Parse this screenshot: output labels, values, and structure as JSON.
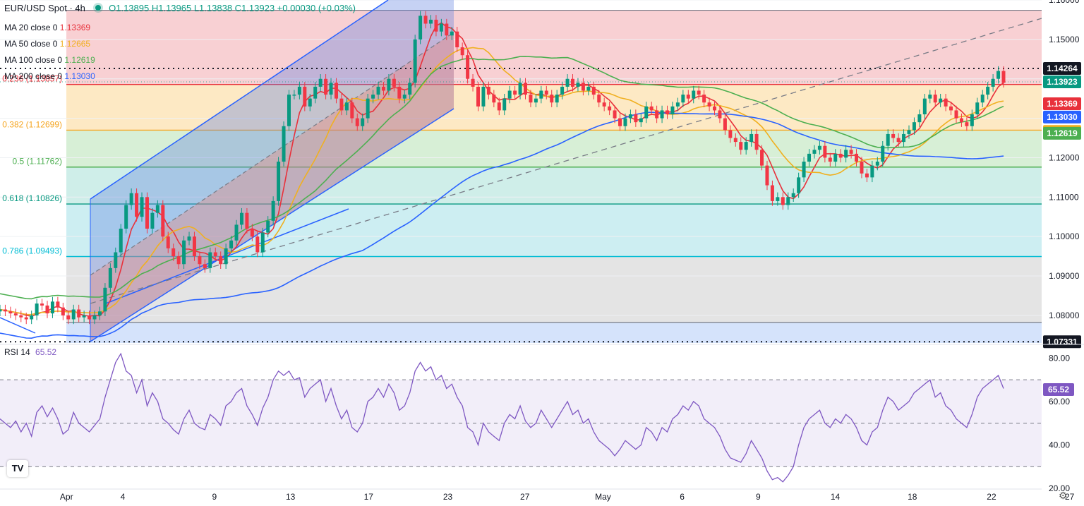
{
  "header": {
    "symbol": "EUR/USD Spot · 4h",
    "ohlc": "O1.13895 H1.13965 L1.13838 C1.13923 +0.00030 (+0.03%)"
  },
  "legend": [
    {
      "label": "MA 20 close 0",
      "value": "1.13369",
      "color": "#e8313b"
    },
    {
      "label": "MA 50 close 0",
      "value": "1.12665",
      "color": "#f0b020"
    },
    {
      "label": "MA 100 close 0",
      "value": "1.12619",
      "color": "#4caf50"
    },
    {
      "label": "MA 200 close 0",
      "value": "1.13030",
      "color": "#2962ff"
    }
  ],
  "rsi_header": {
    "label": "RSI 14",
    "value": "65.52"
  },
  "chart_data": {
    "type": "candlestick",
    "price_axis": {
      "min": 1.073,
      "max": 1.16,
      "ticks": [
        "1.16000",
        "1.15000",
        "1.14000",
        "1.13000",
        "1.12000",
        "1.11000",
        "1.10000",
        "1.09000",
        "1.08000"
      ]
    },
    "time_axis": {
      "labels": [
        "Apr",
        "4",
        "9",
        "13",
        "17",
        "23",
        "27",
        "May",
        "6",
        "9",
        "14",
        "18",
        "22",
        "27"
      ],
      "positions": [
        0.03,
        0.084,
        0.172,
        0.245,
        0.32,
        0.396,
        0.47,
        0.545,
        0.621,
        0.694,
        0.768,
        0.842,
        0.918,
        0.993
      ]
    },
    "price_labels": [
      {
        "text": "1.14264",
        "value": 1.14264,
        "bg": "#131722",
        "fg": "#ffffff"
      },
      {
        "text": "1.13923",
        "value": 1.13923,
        "bg": "#089981",
        "fg": "#ffffff"
      },
      {
        "text": "1.13369",
        "value": 1.13369,
        "bg": "#e8313b",
        "fg": "#ffffff"
      },
      {
        "text": "1.13030",
        "value": 1.1303,
        "bg": "#2962ff",
        "fg": "#ffffff"
      },
      {
        "text": "1.12665",
        "value": 1.12665,
        "bg": "#f0b020",
        "fg": "#ffffff"
      },
      {
        "text": "1.12619",
        "value": 1.12619,
        "bg": "#4caf50",
        "fg": "#ffffff"
      },
      {
        "text": "1.07331",
        "value": 1.07331,
        "bg": "#131722",
        "fg": "#ffffff"
      }
    ],
    "fib_levels": [
      {
        "ratio": "0.236",
        "label": "0.236 (1.13857)",
        "value": 1.13857,
        "color": "#e8313b"
      },
      {
        "ratio": "0.382",
        "label": "0.382 (1.12699)",
        "value": 1.12699,
        "color": "#f5a623"
      },
      {
        "ratio": "0.5",
        "label": "0.5 (1.11762)",
        "value": 1.11762,
        "color": "#4caf50"
      },
      {
        "ratio": "0.618",
        "label": "0.618 (1.10826)",
        "value": 1.10826,
        "color": "#089981"
      },
      {
        "ratio": "0.786",
        "label": "0.786 (1.09493)",
        "value": 1.09493,
        "color": "#00bcd4"
      }
    ],
    "fib_top": 1.15739,
    "fib_bottom": 1.07822,
    "dotted_levels": [
      1.14264,
      1.07331
    ],
    "candles_close": [
      1.0815,
      1.081,
      1.0805,
      1.08,
      1.0795,
      1.079,
      1.08,
      1.083,
      1.0825,
      1.0805,
      1.0835,
      1.082,
      1.08,
      1.079,
      1.0815,
      1.0795,
      1.08,
      1.079,
      1.08,
      1.081,
      1.087,
      1.092,
      1.096,
      1.102,
      1.108,
      1.111,
      1.105,
      1.11,
      1.102,
      1.106,
      1.108,
      1.1,
      1.097,
      1.095,
      1.093,
      1.099,
      1.1,
      1.095,
      1.093,
      1.092,
      1.096,
      1.095,
      1.093,
      1.097,
      1.099,
      1.103,
      1.106,
      1.102,
      1.1,
      1.096,
      1.101,
      1.104,
      1.109,
      1.119,
      1.128,
      1.136,
      1.136,
      1.138,
      1.133,
      1.135,
      1.138,
      1.14,
      1.136,
      1.139,
      1.135,
      1.132,
      1.134,
      1.13,
      1.128,
      1.13,
      1.135,
      1.136,
      1.138,
      1.137,
      1.14,
      1.138,
      1.135,
      1.136,
      1.139,
      1.15,
      1.156,
      1.154,
      1.155,
      1.152,
      1.154,
      1.151,
      1.152,
      1.148,
      1.146,
      1.14,
      1.138,
      1.133,
      1.138,
      1.136,
      1.134,
      1.132,
      1.135,
      1.137,
      1.136,
      1.139,
      1.136,
      1.134,
      1.135,
      1.137,
      1.136,
      1.134,
      1.136,
      1.138,
      1.14,
      1.138,
      1.139,
      1.137,
      1.138,
      1.136,
      1.134,
      1.133,
      1.132,
      1.13,
      1.128,
      1.13,
      1.131,
      1.129,
      1.13,
      1.133,
      1.132,
      1.13,
      1.132,
      1.131,
      1.133,
      1.134,
      1.136,
      1.135,
      1.137,
      1.136,
      1.134,
      1.133,
      1.132,
      1.13,
      1.127,
      1.125,
      1.124,
      1.122,
      1.124,
      1.126,
      1.122,
      1.118,
      1.113,
      1.109,
      1.11,
      1.108,
      1.11,
      1.111,
      1.115,
      1.119,
      1.121,
      1.122,
      1.123,
      1.12,
      1.119,
      1.121,
      1.12,
      1.122,
      1.121,
      1.119,
      1.116,
      1.115,
      1.118,
      1.119,
      1.123,
      1.126,
      1.125,
      1.124,
      1.126,
      1.127,
      1.129,
      1.131,
      1.135,
      1.136,
      1.134,
      1.135,
      1.133,
      1.132,
      1.13,
      1.129,
      1.128,
      1.131,
      1.134,
      1.136,
      1.138,
      1.14,
      1.142,
      1.139
    ],
    "rsi": {
      "min": 20,
      "max": 85,
      "ticks": [
        "80.00",
        "60.00",
        "40.00",
        "20.00"
      ],
      "upper": 70,
      "mid": 50,
      "lower": 30,
      "last": 65.52,
      "values": [
        52,
        50,
        48,
        51,
        46,
        50,
        44,
        55,
        58,
        53,
        57,
        52,
        45,
        47,
        55,
        50,
        48,
        46,
        49,
        52,
        62,
        70,
        78,
        82,
        74,
        72,
        64,
        70,
        58,
        64,
        60,
        52,
        50,
        47,
        45,
        52,
        56,
        50,
        48,
        47,
        54,
        52,
        49,
        58,
        60,
        64,
        66,
        58,
        54,
        49,
        57,
        62,
        70,
        74,
        72,
        74,
        70,
        71,
        62,
        66,
        68,
        70,
        60,
        66,
        58,
        52,
        56,
        48,
        46,
        50,
        60,
        62,
        66,
        62,
        68,
        64,
        56,
        58,
        64,
        74,
        78,
        74,
        76,
        70,
        72,
        66,
        68,
        62,
        58,
        48,
        46,
        40,
        50,
        46,
        44,
        42,
        50,
        54,
        52,
        58,
        51,
        48,
        50,
        56,
        52,
        48,
        52,
        56,
        60,
        54,
        56,
        50,
        52,
        46,
        42,
        40,
        38,
        35,
        38,
        42,
        40,
        38,
        40,
        48,
        46,
        42,
        48,
        46,
        52,
        54,
        58,
        56,
        60,
        58,
        52,
        50,
        48,
        44,
        38,
        34,
        33,
        32,
        36,
        42,
        38,
        34,
        28,
        24,
        25,
        23,
        26,
        30,
        40,
        48,
        52,
        54,
        56,
        50,
        48,
        52,
        50,
        54,
        52,
        48,
        42,
        40,
        46,
        48,
        56,
        62,
        60,
        56,
        58,
        60,
        64,
        66,
        68,
        70,
        62,
        64,
        58,
        56,
        52,
        50,
        48,
        54,
        62,
        66,
        68,
        70,
        72,
        66
      ]
    }
  }
}
